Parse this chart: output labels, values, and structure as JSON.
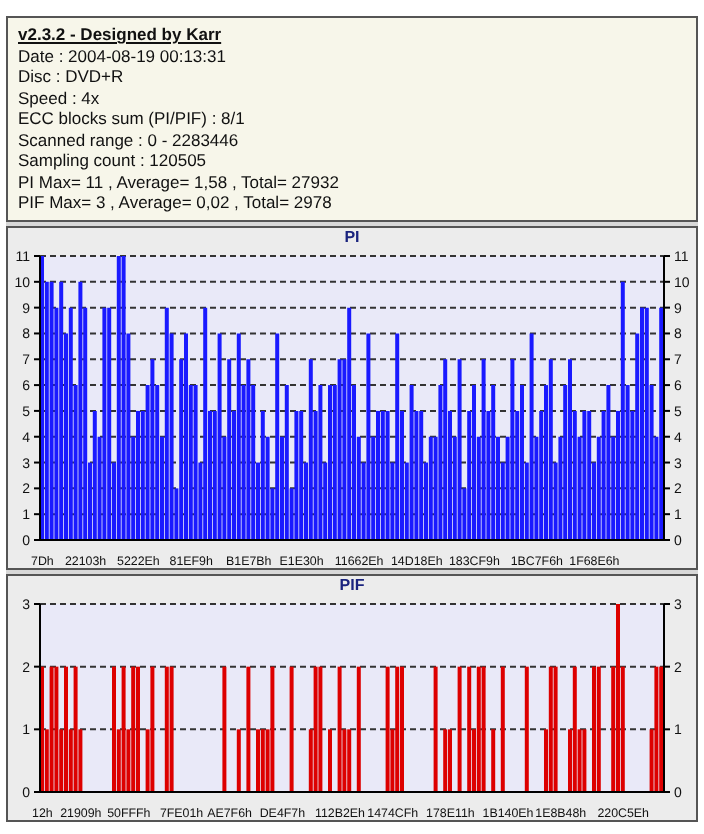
{
  "chart_data": [
    {
      "type": "other",
      "title": "v2.3.2 - Designed by Karr",
      "annotations": [
        "Date : 2004-08-19 00:13:31",
        "Disc : DVD+R",
        "Speed : 4x",
        "ECC blocks sum (PI/PIF) : 8/1",
        "Scanned range : 0 - 2283446",
        "Sampling count : 120505",
        "PI Max= 11 , Average= 1,58 , Total= 27932",
        "PIF Max= 3 , Average= 0,02 , Total= 2978"
      ]
    },
    {
      "type": "bar",
      "title": "PI",
      "color": "#1a1aff",
      "grid": "y",
      "line_style": "dashed",
      "legend": false,
      "categories": [
        "7Dh",
        null,
        null,
        null,
        null,
        null,
        null,
        null,
        null,
        "22103h",
        null,
        null,
        null,
        null,
        null,
        null,
        null,
        null,
        null,
        null,
        "5222Eh",
        null,
        null,
        null,
        null,
        null,
        null,
        null,
        null,
        null,
        null,
        "81EF9h",
        null,
        null,
        null,
        null,
        null,
        null,
        null,
        null,
        null,
        null,
        null,
        "B1E7Bh",
        null,
        null,
        null,
        null,
        null,
        null,
        null,
        null,
        null,
        null,
        "E1E30h",
        null,
        null,
        null,
        null,
        null,
        null,
        null,
        null,
        null,
        null,
        null,
        "11662Eh",
        null,
        null,
        null,
        null,
        null,
        null,
        null,
        null,
        null,
        null,
        null,
        "14D18Eh",
        null,
        null,
        null,
        null,
        null,
        null,
        null,
        null,
        null,
        null,
        null,
        "183CF9h",
        null,
        null,
        null,
        null,
        null,
        null,
        null,
        null,
        null,
        null,
        null,
        null,
        "1BC7F6h",
        null,
        null,
        null,
        null,
        null,
        null,
        null,
        null,
        null,
        null,
        null,
        "1F68E6h",
        null,
        null,
        null,
        null,
        null,
        null,
        null,
        null,
        null,
        null,
        null,
        null,
        null,
        null
      ],
      "values": [
        11,
        10,
        10,
        9,
        10,
        8,
        9,
        6,
        10,
        9,
        3,
        5,
        4,
        9,
        9,
        3,
        11,
        11,
        8,
        4,
        5,
        5,
        6,
        7,
        6,
        4,
        9,
        8,
        2,
        7,
        8,
        6,
        6,
        3,
        9,
        5,
        5,
        8,
        4,
        7,
        5,
        8,
        6,
        7,
        6,
        3,
        5,
        4,
        2,
        8,
        4,
        6,
        2,
        5,
        5,
        3,
        7,
        5,
        6,
        3,
        6,
        6,
        7,
        7,
        9,
        6,
        4,
        3,
        8,
        4,
        5,
        5,
        5,
        3,
        8,
        5,
        3,
        6,
        5,
        5,
        3,
        4,
        4,
        6,
        7,
        5,
        4,
        7,
        2,
        5,
        6,
        4,
        7,
        5,
        6,
        4,
        3,
        4,
        7,
        5,
        6,
        3,
        8,
        4,
        5,
        6,
        7,
        3,
        4,
        6,
        7,
        5,
        4,
        5,
        5,
        3,
        4,
        5,
        6,
        4,
        5,
        10,
        6,
        5,
        8,
        9,
        9,
        6,
        4,
        9
      ],
      "ylim": [
        0,
        11
      ],
      "yticks": [
        0,
        1,
        2,
        3,
        4,
        5,
        6,
        7,
        8,
        9,
        10,
        11
      ],
      "y2lim": [
        0,
        11
      ],
      "y2ticks": [
        0,
        1,
        2,
        3,
        4,
        5,
        6,
        7,
        8,
        9,
        10,
        11
      ]
    },
    {
      "type": "bar",
      "title": "PIF",
      "color": "#dd0000",
      "grid": "y",
      "line_style": "dashed",
      "legend": false,
      "categories": [
        "12h",
        null,
        null,
        null,
        null,
        null,
        null,
        null,
        "21909h",
        null,
        null,
        null,
        null,
        null,
        null,
        null,
        null,
        null,
        "50FFFh",
        null,
        null,
        null,
        null,
        null,
        null,
        null,
        null,
        null,
        null,
        "7FE01h",
        null,
        null,
        null,
        null,
        null,
        null,
        null,
        null,
        null,
        "AE7F6h",
        null,
        null,
        null,
        null,
        null,
        null,
        null,
        null,
        null,
        null,
        "DE4F7h",
        null,
        null,
        null,
        null,
        null,
        null,
        null,
        null,
        null,
        null,
        null,
        "112B2Eh",
        null,
        null,
        null,
        null,
        null,
        null,
        null,
        null,
        null,
        null,
        "1474CFh",
        null,
        null,
        null,
        null,
        null,
        null,
        null,
        null,
        null,
        null,
        null,
        "178E11h",
        null,
        null,
        null,
        null,
        null,
        null,
        null,
        null,
        null,
        null,
        null,
        "1B140Eh",
        null,
        null,
        null,
        null,
        null,
        null,
        null,
        null,
        null,
        null,
        "1E8B48h",
        null,
        null,
        null,
        null,
        null,
        null,
        null,
        null,
        null,
        null,
        null,
        null,
        "220C5Eh",
        null,
        null,
        null,
        null,
        null,
        null,
        null,
        null
      ],
      "values": [
        2,
        1,
        2,
        2,
        1,
        2,
        1,
        2,
        1,
        0,
        0,
        0,
        0,
        0,
        0,
        2,
        1,
        2,
        1,
        2,
        2,
        0,
        1,
        2,
        0,
        0,
        2,
        2,
        0,
        0,
        0,
        0,
        0,
        0,
        0,
        0,
        0,
        0,
        2,
        0,
        0,
        1,
        0,
        2,
        0,
        1,
        1,
        1,
        2,
        0,
        0,
        0,
        2,
        0,
        0,
        0,
        1,
        2,
        2,
        0,
        1,
        0,
        2,
        1,
        1,
        0,
        2,
        0,
        0,
        0,
        0,
        0,
        2,
        1,
        2,
        2,
        0,
        0,
        0,
        0,
        0,
        0,
        2,
        0,
        1,
        1,
        0,
        2,
        0,
        2,
        1,
        2,
        2,
        0,
        1,
        0,
        2,
        0,
        0,
        0,
        0,
        2,
        0,
        0,
        0,
        1,
        2,
        2,
        0,
        0,
        1,
        2,
        1,
        1,
        0,
        2,
        2,
        0,
        0,
        2,
        3,
        2,
        0,
        0,
        0,
        0,
        0,
        1,
        2,
        2
      ],
      "ylim": [
        0,
        3
      ],
      "yticks": [
        0,
        1,
        2,
        3
      ],
      "y2lim": [
        0,
        3
      ],
      "y2ticks": [
        0,
        1,
        2,
        3
      ]
    }
  ]
}
